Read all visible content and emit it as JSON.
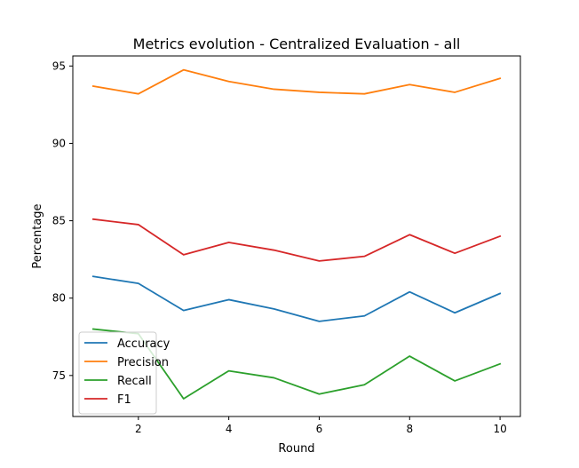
{
  "chart_data": {
    "type": "line",
    "title": "Metrics evolution - Centralized Evaluation - all",
    "xlabel": "Round",
    "ylabel": "Percentage",
    "x": [
      1,
      2,
      3,
      4,
      5,
      6,
      7,
      8,
      9,
      10
    ],
    "xlim": [
      0.55,
      10.45
    ],
    "ylim": [
      72.35,
      95.65
    ],
    "xticks": [
      2,
      4,
      6,
      8,
      10
    ],
    "yticks": [
      75,
      80,
      85,
      90,
      95
    ],
    "grid": false,
    "legend_position": "lower-left",
    "series": [
      {
        "name": "Accuracy",
        "color": "#1f77b4",
        "values": [
          81.4,
          80.95,
          79.2,
          79.9,
          79.3,
          78.5,
          78.85,
          80.4,
          79.05,
          80.3
        ]
      },
      {
        "name": "Precision",
        "color": "#ff7f0e",
        "values": [
          93.7,
          93.2,
          94.75,
          94.0,
          93.5,
          93.3,
          93.2,
          93.8,
          93.3,
          94.2
        ]
      },
      {
        "name": "Recall",
        "color": "#2ca02c",
        "values": [
          78.0,
          77.7,
          73.5,
          75.3,
          74.85,
          73.8,
          74.4,
          76.25,
          74.65,
          75.75
        ]
      },
      {
        "name": "F1",
        "color": "#d62728",
        "values": [
          85.1,
          84.75,
          82.8,
          83.6,
          83.1,
          82.4,
          82.7,
          84.1,
          82.9,
          84.0
        ]
      }
    ]
  }
}
